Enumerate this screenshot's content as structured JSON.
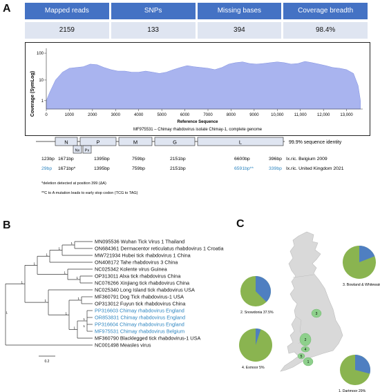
{
  "panel_labels": {
    "a": "A",
    "b": "B",
    "c": "C"
  },
  "stats": {
    "headers": [
      "Mapped reads",
      "SNPs",
      "Missing bases",
      "Coverage breadth"
    ],
    "values": [
      "2159",
      "133",
      "394",
      "98.4%"
    ]
  },
  "chart_data": {
    "type": "area",
    "ylabel": "Coverage (SymLog)",
    "xlabel": "Reference Sequence",
    "subtitle": "MF975531 – Chimay rhabdovirus isolate Chimay-1, complete genome",
    "y_scale": "symlog",
    "y_ticks": [
      "100",
      "10",
      "1"
    ],
    "x_ticks": [
      "0",
      "1000",
      "2000",
      "3000",
      "4000",
      "5000",
      "6000",
      "7000",
      "8000",
      "9000",
      "10,000",
      "11,000",
      "12,000",
      "13,000"
    ],
    "xlim": [
      0,
      13700
    ],
    "ylim": [
      0,
      150
    ],
    "grid": false,
    "color": "#a9b4ef",
    "x": [
      0,
      150,
      400,
      700,
      1000,
      1300,
      1600,
      1900,
      2200,
      2500,
      2800,
      3100,
      3400,
      3700,
      4000,
      4300,
      4600,
      4900,
      5200,
      5500,
      5800,
      6100,
      6400,
      6700,
      7000,
      7300,
      7600,
      7900,
      8200,
      8500,
      8800,
      9100,
      9400,
      9700,
      10000,
      10300,
      10600,
      10900,
      11200,
      11500,
      11800,
      12100,
      12400,
      12700,
      13000,
      13300,
      13500,
      13600
    ],
    "y": [
      1,
      3,
      10,
      20,
      28,
      30,
      32,
      40,
      38,
      30,
      25,
      22,
      22,
      20,
      20,
      22,
      20,
      18,
      20,
      25,
      30,
      35,
      32,
      30,
      28,
      25,
      30,
      40,
      45,
      48,
      42,
      40,
      42,
      45,
      48,
      45,
      40,
      42,
      50,
      45,
      40,
      35,
      30,
      28,
      25,
      18,
      6,
      1
    ]
  },
  "genome": {
    "genes": [
      "N",
      "P",
      "M",
      "G",
      "L"
    ],
    "small_genes": [
      "Nx",
      "Px"
    ],
    "identity": "99.9% sequence identity",
    "rows": [
      {
        "cells": [
          "123bp",
          "1671bp",
          "1395bp",
          "759bp",
          "2151bp",
          "6600bp",
          "396bp",
          "Ix.ric. Belgium 2009"
        ]
      },
      {
        "cells": [
          "29bp",
          "1671bp*",
          "1395bp",
          "759bp",
          "2151bp",
          "6591bp**",
          "339bp",
          "Ix.ric. United Kingdom 2021"
        ]
      }
    ],
    "notes": [
      "*deletion detected at position 399 (ΔA)",
      "**C to A mutation leads to early stop codon (TCG to TAG)"
    ]
  },
  "tree": {
    "scale": "0.2",
    "taxa": [
      {
        "label": "MN095536 Wuhan Tick Virus 1 Thailand",
        "uk": false
      },
      {
        "label": "ON684361 Dermacentor reticulatus rhabdovirus 1 Croatia",
        "uk": false
      },
      {
        "label": "MW721934 Hubei tick rhabdovirus 1 China",
        "uk": false
      },
      {
        "label": "ON408172 Tahe rhabdovirus 3 China",
        "uk": false
      },
      {
        "label": "NC025342 Kolente virus Guinea",
        "uk": false
      },
      {
        "label": "OP313011 Alxa tick rhabdovirus China",
        "uk": false
      },
      {
        "label": "NC076266 Xinjiang tick rhabdovirus China",
        "uk": false
      },
      {
        "label": "NC025340 Long Island tick rhabdovirus USA",
        "uk": false
      },
      {
        "label": "MF360791 Dog Tick rhabdovirus-1 USA",
        "uk": false
      },
      {
        "label": "OP313012 Fuyun tick rhabdovirus China",
        "uk": false
      },
      {
        "label": "PP316603 Chimay rhabdovirus England",
        "uk": true
      },
      {
        "label": "OR853831 Chimay rhabdovirus England",
        "uk": true
      },
      {
        "label": "PP316604 Chimay rhabdovirus England",
        "uk": true
      },
      {
        "label": "MF975531 Chimay rhabdovirus Belgium",
        "uk": true
      },
      {
        "label": "MF360790 Blacklegged tick rhabdovirus-1 USA",
        "uk": false
      },
      {
        "label": "NC001498 Measles virus",
        "uk": false
      }
    ],
    "bootstrap": [
      "1",
      "1",
      "1",
      "1",
      "1",
      "1",
      "1",
      "1",
      "1",
      "1",
      "1",
      "1",
      "1",
      "1"
    ]
  },
  "map": {
    "site_numbers": [
      "1",
      "2",
      "3",
      "4",
      "5"
    ],
    "pies": [
      {
        "label": "2. Snowdonia 37.5%",
        "fraction": 0.375
      },
      {
        "label": "3. Bowland & Whitewater 19.1%",
        "fraction": 0.191
      },
      {
        "label": "4. Exmoor 5%",
        "fraction": 0.05
      },
      {
        "label": "1. Dartmoor 29%",
        "fraction": 0.29
      }
    ],
    "colors": {
      "blue": "#4f7fc1",
      "green": "#8ab450",
      "map": "#d9d9d9",
      "site": "#8ed08c"
    }
  }
}
